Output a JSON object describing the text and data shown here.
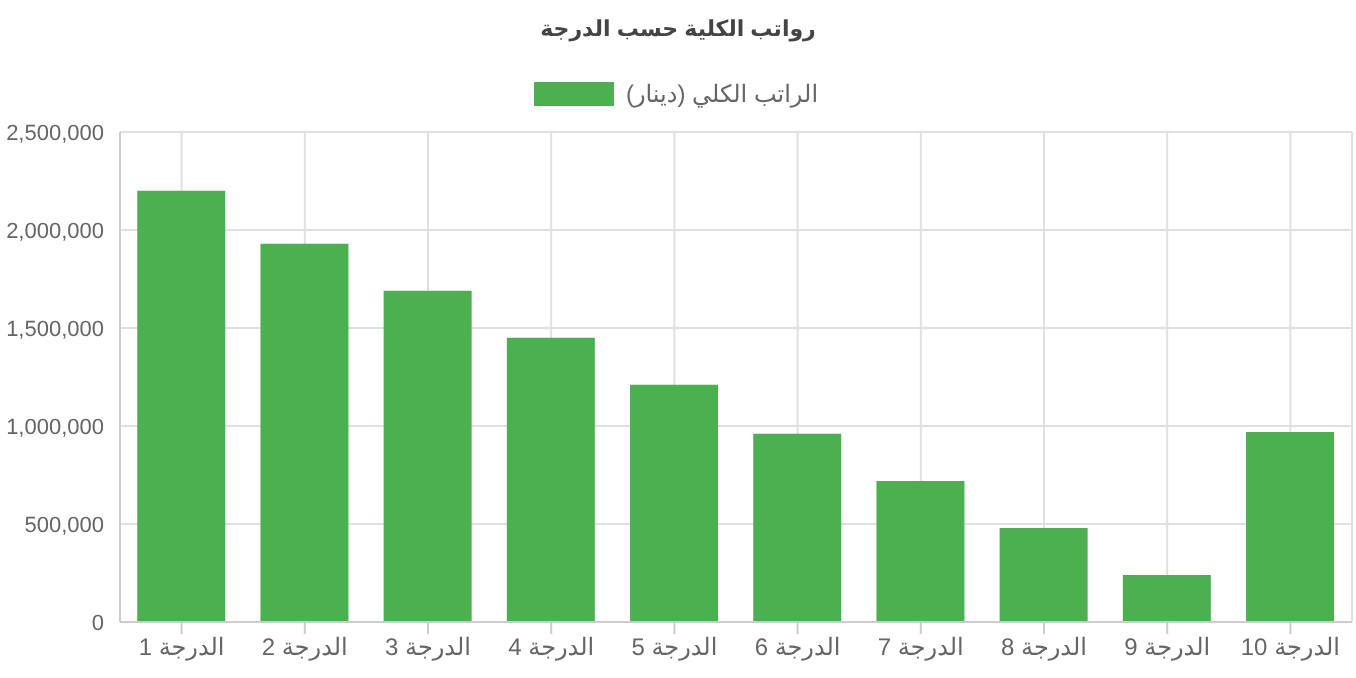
{
  "chart_data": {
    "type": "bar",
    "title": "رواتب الكلية حسب الدرجة",
    "categories": [
      "الدرجة 1",
      "الدرجة 2",
      "الدرجة 3",
      "الدرجة 4",
      "الدرجة 5",
      "الدرجة 6",
      "الدرجة 7",
      "الدرجة 8",
      "الدرجة 9",
      "الدرجة 10"
    ],
    "series": [
      {
        "name": "الراتب الكلي (دينار)",
        "color": "#4caf50",
        "values": [
          2200000,
          1930000,
          1690000,
          1450000,
          1210000,
          960000,
          720000,
          480000,
          240000,
          970000
        ]
      }
    ],
    "ylim": [
      0,
      2500000
    ],
    "yticks": [
      0,
      {
        "value": 500000,
        "label": "500,000"
      },
      {
        "value": 1000000,
        "label": "1,000,000"
      },
      {
        "value": 1500000,
        "label": "1,500,000"
      },
      {
        "value": 2000000,
        "label": "2,000,000"
      },
      {
        "value": 2500000,
        "label": "2,500,000"
      }
    ],
    "grid": true,
    "legend": "top"
  }
}
